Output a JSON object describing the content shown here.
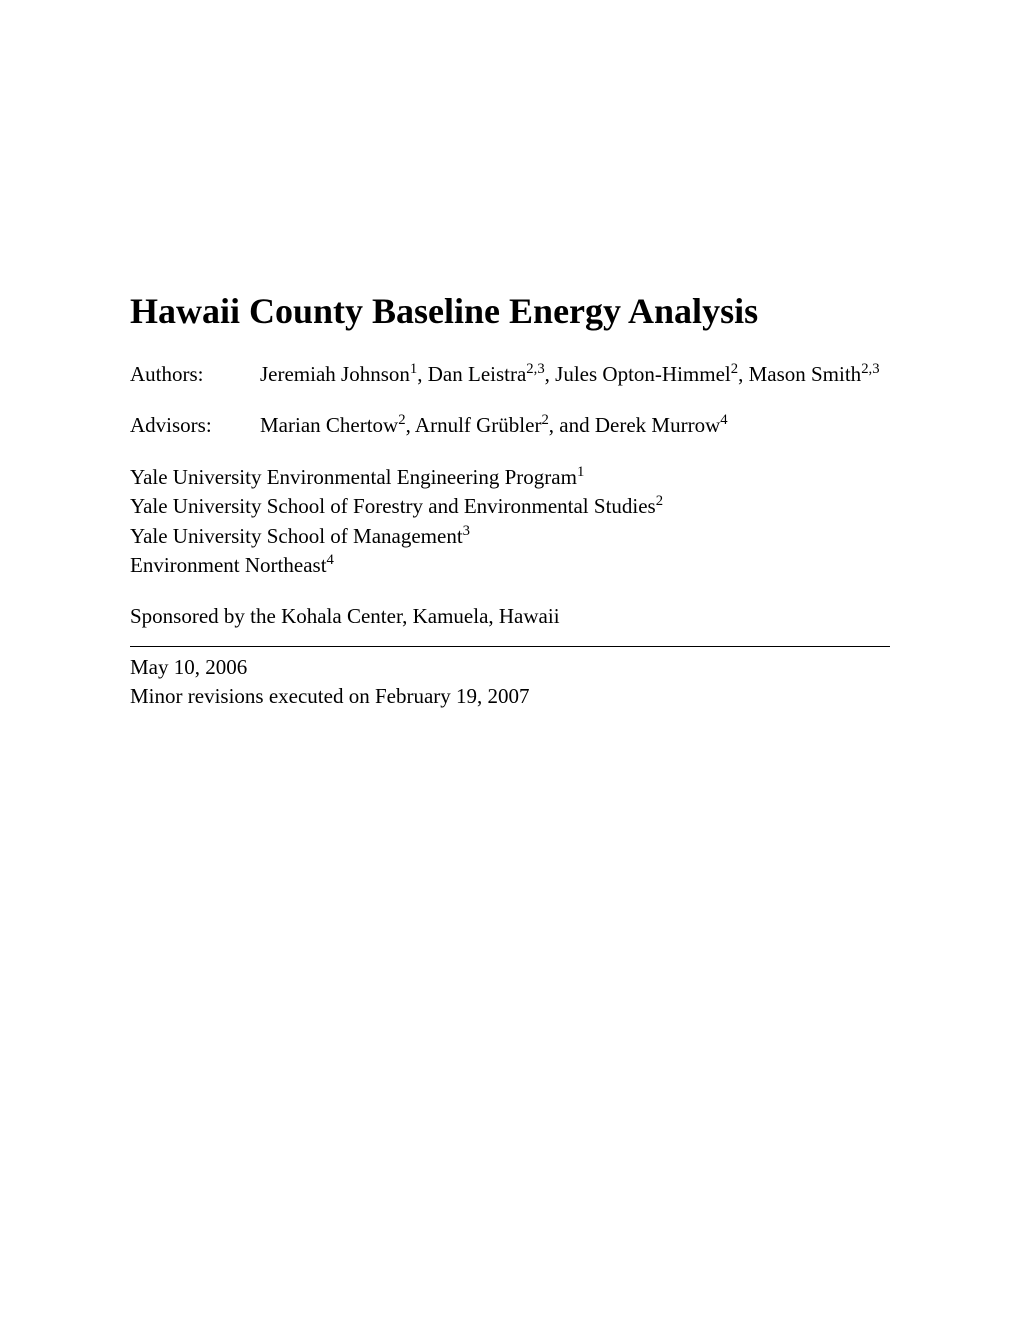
{
  "title": "Hawaii County Baseline Energy Analysis",
  "authors_label": "Authors:",
  "authors_html": "Jeremiah Johnson<sup>1</sup>, Dan Leistra<sup>2,3</sup>, Jules Opton-Himmel<sup>2</sup>, Mason Smith<sup>2,3</sup>",
  "advisors_label": "Advisors:",
  "advisors_html": "Marian Chertow<sup>2</sup>, Arnulf Grübler<sup>2</sup>, and Derek Murrow<sup>4</sup>",
  "affiliations_html": "Yale University Environmental Engineering Program<sup>1</sup><br>Yale University School of Forestry and Environmental Studies<sup>2</sup><br>Yale University School of Management<sup>3</sup><br>Environment Northeast<sup>4</sup>",
  "sponsor": "Sponsored by the Kohala Center, Kamuela, Hawaii",
  "date_line1": "May 10, 2006",
  "date_line2": "Minor revisions executed on February 19, 2007",
  "colors": {
    "background": "#ffffff",
    "text": "#000000",
    "divider": "#000000"
  },
  "typography": {
    "title_fontsize": 36,
    "body_fontsize": 21,
    "font_family": "Times New Roman"
  }
}
